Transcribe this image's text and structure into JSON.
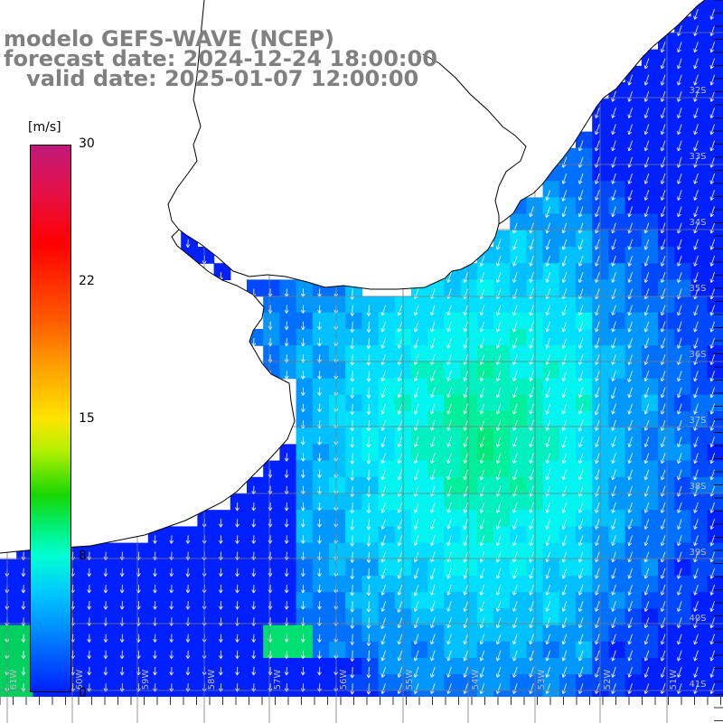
{
  "title": {
    "line1": "modelo GEFS-WAVE (NCEP)",
    "line2": "forecast date: 2024-12-24 18:00:00",
    "line3": "   valid date: 2025-01-07 12:00:00"
  },
  "colorbar": {
    "unit": "[m/s]",
    "ticks": [
      "30",
      "22",
      "15",
      "8",
      "0"
    ]
  },
  "lat_labels": [
    "32S",
    "33S",
    "34S",
    "35S",
    "36S",
    "37S",
    "38S",
    "39S",
    "40S",
    "41S"
  ],
  "lon_labels": [
    "61W",
    "60W",
    "59W",
    "58W",
    "57W",
    "56W",
    "55W",
    "54W",
    "53W",
    "52W",
    "51W"
  ],
  "colors": {
    "land": "#ffffff",
    "coastline": "#000000",
    "grid": "#7a7a7a",
    "arrow": "#ffffff",
    "title_text": "#808080"
  }
}
